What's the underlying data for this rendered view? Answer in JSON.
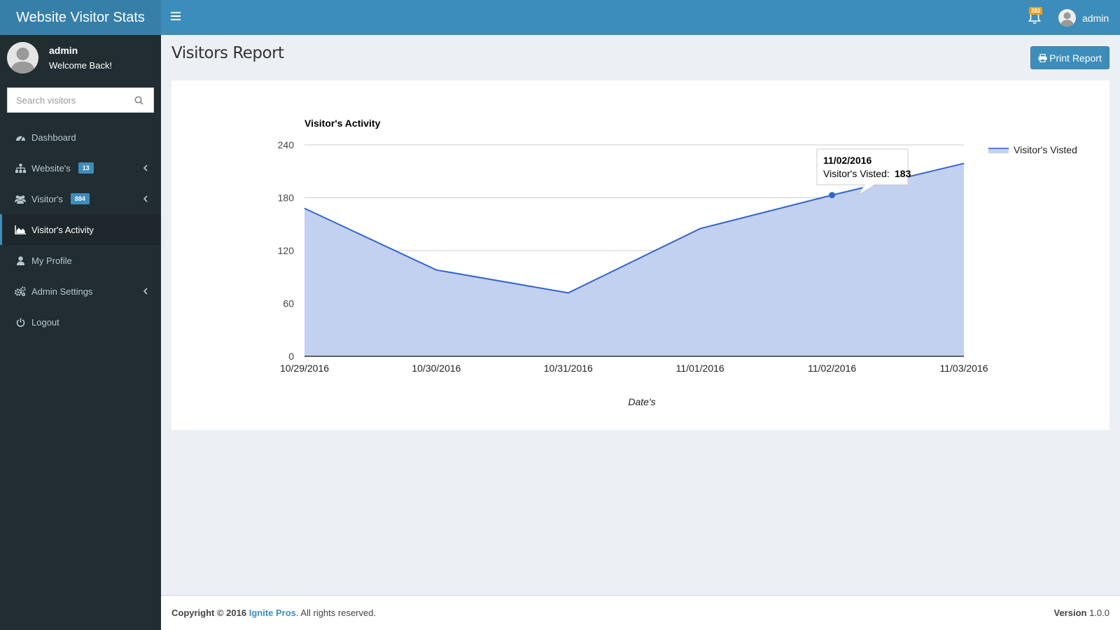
{
  "header": {
    "brand": "Website Visitor Stats",
    "notification_count": "282",
    "user_name": "admin"
  },
  "sidebar": {
    "user": {
      "name": "admin",
      "status": "Welcome Back!"
    },
    "search_placeholder": "Search visitors",
    "items": [
      {
        "label": "Dashboard",
        "icon": "dashboard-icon",
        "badge": "",
        "expandable": false,
        "active": false
      },
      {
        "label": "Website's",
        "icon": "sitemap-icon",
        "badge": "13",
        "expandable": true,
        "active": false
      },
      {
        "label": "Visitor's",
        "icon": "users-icon",
        "badge": "884",
        "expandable": true,
        "active": false
      },
      {
        "label": "Visitor's Activity",
        "icon": "area-chart-icon",
        "badge": "",
        "expandable": false,
        "active": true
      },
      {
        "label": "My Profile",
        "icon": "user-icon",
        "badge": "",
        "expandable": false,
        "active": false
      },
      {
        "label": "Admin Settings",
        "icon": "gears-icon",
        "badge": "",
        "expandable": true,
        "active": false
      },
      {
        "label": "Logout",
        "icon": "power-icon",
        "badge": "",
        "expandable": false,
        "active": false
      }
    ]
  },
  "content": {
    "title": "Visitors Report",
    "print_label": "Print Report"
  },
  "chart_data": {
    "type": "area",
    "title": "Visitor's Activity",
    "xlabel": "Date's",
    "ylabel": "",
    "x": [
      "10/29/2016",
      "10/30/2016",
      "10/31/2016",
      "11/01/2016",
      "11/02/2016",
      "11/03/2016"
    ],
    "series": [
      {
        "name": "Visitor's Visted",
        "values": [
          168,
          98,
          72,
          145,
          183,
          219
        ]
      }
    ],
    "ylim": [
      0,
      240
    ],
    "yticks": [
      0,
      60,
      120,
      180,
      240
    ],
    "grid": true,
    "legend": "right",
    "colors": {
      "line": "#3366cc",
      "fill": "#c2d1f0"
    },
    "tooltip": {
      "index": 4,
      "title": "11/02/2016",
      "label": "Visitor's Visted:",
      "value": "183"
    }
  },
  "footer": {
    "copyright_prefix": "Copyright © 2016",
    "company": "Ignite Pros",
    "copyright_suffix": ". All rights reserved.",
    "version_label": "Version",
    "version": "1.0.0"
  }
}
